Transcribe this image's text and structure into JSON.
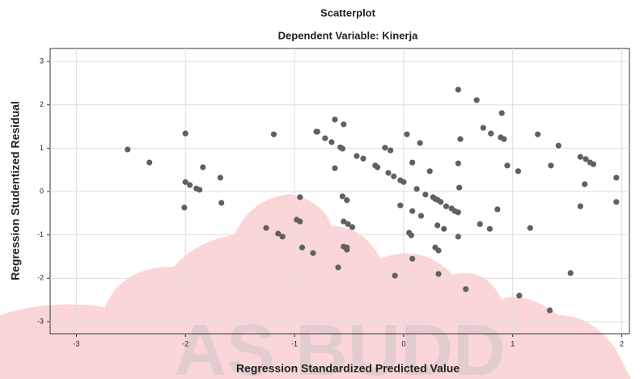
{
  "chart_data": {
    "type": "scatter",
    "title": "Scatterplot",
    "subtitle": "Dependent Variable: Kinerja",
    "x_label": "Regression Standardized Predicted Value",
    "y_label": "Regression Studentized Residual",
    "watermark": "AS BUDD",
    "color": "#606060",
    "xlim": [
      -3.24,
      2.07
    ],
    "ylim": [
      -3.28,
      3.3
    ],
    "xticks": [
      -3,
      -2,
      -1,
      0,
      1,
      2
    ],
    "yticks": [
      -3,
      -2,
      -1,
      0,
      1,
      2,
      3
    ],
    "grid": true,
    "x": [
      -2.53,
      -2.33,
      -2.0,
      -2.0,
      -1.96,
      -1.9,
      -1.87,
      -1.84,
      -2.01,
      -1.68,
      -1.67,
      -1.19,
      -1.26,
      -1.15,
      -1.11,
      -0.95,
      -0.98,
      -0.95,
      -0.93,
      -0.83,
      -0.8,
      -0.79,
      -0.72,
      -0.66,
      -0.63,
      -0.58,
      -0.56,
      -0.55,
      -0.63,
      -0.56,
      -0.52,
      -0.55,
      -0.51,
      -0.47,
      -0.55,
      -0.52,
      -0.52,
      -0.6,
      -0.43,
      -0.37,
      -0.26,
      -0.24,
      -0.17,
      -0.12,
      -0.14,
      -0.09,
      -0.03,
      0.0,
      0.03,
      0.15,
      -0.03,
      0.08,
      0.12,
      0.2,
      0.24,
      0.08,
      0.16,
      0.05,
      0.07,
      -0.08,
      0.08,
      0.27,
      0.29,
      0.31,
      0.34,
      0.39,
      0.44,
      0.31,
      0.37,
      0.47,
      0.5,
      0.5,
      0.29,
      0.32,
      0.32,
      0.5,
      0.52,
      0.5,
      0.51,
      0.57,
      0.67,
      0.73,
      0.8,
      0.9,
      0.89,
      0.92,
      0.95,
      0.86,
      0.7,
      0.79,
      1.05,
      1.06,
      1.16,
      1.23,
      1.35,
      1.42,
      1.34,
      1.53,
      1.62,
      1.67,
      1.66,
      1.62,
      1.71,
      1.74,
      1.95,
      1.95
    ],
    "values": [
      0.97,
      0.67,
      1.34,
      0.22,
      0.15,
      0.07,
      0.04,
      0.56,
      -0.37,
      0.32,
      -0.26,
      1.32,
      -0.84,
      -0.97,
      -1.04,
      -0.13,
      -0.65,
      -0.69,
      -1.29,
      -1.42,
      1.38,
      1.38,
      1.23,
      1.14,
      1.66,
      1.02,
      0.99,
      1.55,
      0.54,
      -0.11,
      -0.2,
      -0.69,
      -0.75,
      -0.82,
      -1.27,
      -1.29,
      -1.34,
      -1.75,
      0.82,
      0.76,
      0.6,
      0.56,
      1.01,
      0.95,
      0.43,
      0.35,
      0.26,
      0.22,
      1.32,
      1.12,
      -0.32,
      0.67,
      0.06,
      -0.07,
      0.47,
      -0.45,
      -0.56,
      -0.95,
      -1.01,
      -1.94,
      -1.55,
      -0.13,
      -0.17,
      -0.19,
      -0.24,
      -0.34,
      -0.39,
      -0.78,
      -0.86,
      -0.45,
      -0.48,
      -1.04,
      -1.29,
      -1.36,
      -1.9,
      2.35,
      1.21,
      0.65,
      0.09,
      -2.25,
      2.11,
      1.47,
      1.34,
      1.81,
      1.25,
      1.21,
      0.6,
      -0.41,
      -0.75,
      -0.86,
      0.47,
      -2.4,
      -0.84,
      1.32,
      0.6,
      1.06,
      -2.74,
      -1.88,
      0.8,
      0.75,
      0.17,
      -0.34,
      0.67,
      0.63,
      0.32,
      -0.24
    ]
  }
}
